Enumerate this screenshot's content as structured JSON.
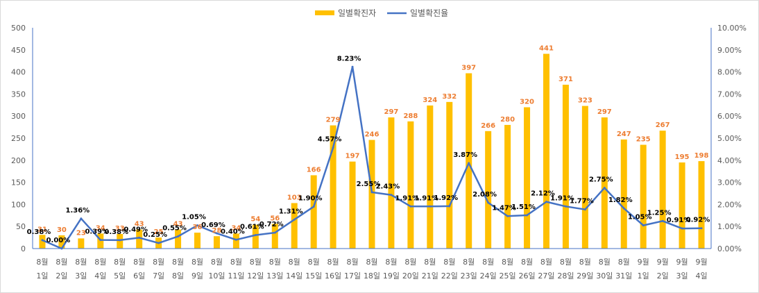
{
  "chart_data": {
    "type": "bar+line",
    "categories": [
      [
        "8월",
        "1일"
      ],
      [
        "8월",
        "2일"
      ],
      [
        "8월",
        "3일"
      ],
      [
        "8월",
        "4일"
      ],
      [
        "8월",
        "5일"
      ],
      [
        "8월",
        "6일"
      ],
      [
        "8월",
        "7일"
      ],
      [
        "8월",
        "8일"
      ],
      [
        "8월",
        "9일"
      ],
      [
        "8월",
        "10일"
      ],
      [
        "8월",
        "11일"
      ],
      [
        "8월",
        "12일"
      ],
      [
        "8월",
        "13일"
      ],
      [
        "8월",
        "14일"
      ],
      [
        "8월",
        "15일"
      ],
      [
        "8월",
        "16일"
      ],
      [
        "8월",
        "17일"
      ],
      [
        "8월",
        "18일"
      ],
      [
        "8월",
        "19일"
      ],
      [
        "8월",
        "20일"
      ],
      [
        "8월",
        "21일"
      ],
      [
        "8월",
        "22일"
      ],
      [
        "8월",
        "23일"
      ],
      [
        "8월",
        "24일"
      ],
      [
        "8월",
        "25일"
      ],
      [
        "8월",
        "26일"
      ],
      [
        "8월",
        "27일"
      ],
      [
        "8월",
        "28일"
      ],
      [
        "8월",
        "29일"
      ],
      [
        "8월",
        "30일"
      ],
      [
        "8월",
        "31일"
      ],
      [
        "9월",
        "1일"
      ],
      [
        "9월",
        "2일"
      ],
      [
        "9월",
        "3일"
      ],
      [
        "9월",
        "4일"
      ]
    ],
    "series": [
      {
        "name": "일별확진자",
        "type": "bar",
        "axis": "left",
        "color": "#FFC000",
        "label_color": "#ED7D31",
        "values": [
          31,
          30,
          23,
          34,
          33,
          43,
          25,
          43,
          36,
          28,
          34,
          54,
          56,
          103,
          166,
          279,
          197,
          246,
          297,
          288,
          324,
          332,
          397,
          266,
          280,
          320,
          441,
          371,
          323,
          297,
          247,
          235,
          267,
          195,
          198
        ],
        "labels": [
          "31",
          "30",
          "23",
          "34",
          "33",
          "43",
          "25",
          "43",
          "36",
          "28",
          "34",
          "54",
          "56",
          "103",
          "166",
          "279",
          "197",
          "246",
          "297",
          "288",
          "324",
          "332",
          "397",
          "266",
          "280",
          "320",
          "441",
          "371",
          "323",
          "297",
          "247",
          "235",
          "267",
          "195",
          "198"
        ]
      },
      {
        "name": "일별확진율",
        "type": "line",
        "axis": "right",
        "color": "#4472C4",
        "values": [
          0.38,
          0.0,
          1.36,
          0.39,
          0.38,
          0.49,
          0.25,
          0.55,
          1.05,
          0.69,
          0.4,
          0.61,
          0.72,
          1.31,
          1.9,
          4.57,
          8.23,
          2.55,
          2.43,
          1.91,
          1.91,
          1.92,
          3.87,
          2.08,
          1.47,
          1.51,
          2.12,
          1.91,
          1.77,
          2.75,
          1.82,
          1.05,
          1.25,
          0.91,
          0.92
        ],
        "labels": [
          "0.38%",
          "0.00%",
          "1.36%",
          "0.39%",
          "0.38%",
          "0.49%",
          "0.25%",
          "0.55%",
          "1.05%",
          "0.69%",
          "0.40%",
          "0.61%",
          "0.72%",
          "1.31%",
          "1.90%",
          "4.57%",
          "8.23%",
          "2.55%",
          "2.43%",
          "1.91%",
          "1.91%",
          "1.92%",
          "3.87%",
          "2.08%",
          "1.47%",
          "1.51%",
          "2.12%",
          "1.91%",
          "1.77%",
          "2.75%",
          "1.82%",
          "1.05%",
          "1.25%",
          "0.91%",
          "0.92%"
        ]
      }
    ],
    "y_left": {
      "min": 0,
      "max": 500,
      "ticks": [
        "0",
        "50",
        "100",
        "150",
        "200",
        "250",
        "300",
        "350",
        "400",
        "450",
        "500"
      ]
    },
    "y_right": {
      "min": 0,
      "max": 10,
      "ticks": [
        "0.00%",
        "1.00%",
        "2.00%",
        "3.00%",
        "4.00%",
        "5.00%",
        "6.00%",
        "7.00%",
        "8.00%",
        "9.00%",
        "10.00%"
      ]
    },
    "legend": {
      "position": "top-center",
      "items": [
        "일별확진자",
        "일별확진율"
      ]
    },
    "gridlines": false,
    "axis_color": "#4472C4"
  }
}
